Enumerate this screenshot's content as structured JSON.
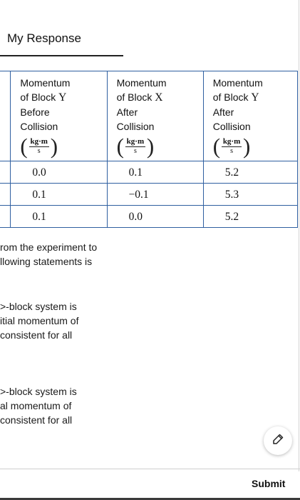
{
  "header": {
    "title": "My Response"
  },
  "table": {
    "columns": [
      {
        "lines": [
          "Momentum",
          "of Block ",
          "Before",
          "Collision"
        ],
        "block": "Y",
        "unit_num": "kg·m",
        "unit_den": "s"
      },
      {
        "lines": [
          "Momentum",
          "of Block ",
          "After",
          "Collision"
        ],
        "block": "X",
        "unit_num": "kg·m",
        "unit_den": "s"
      },
      {
        "lines": [
          "Momentum",
          "of Block ",
          "After",
          "Collision"
        ],
        "block": "Y",
        "unit_num": "kg·m",
        "unit_den": "s"
      }
    ],
    "rows": [
      [
        "0.0",
        "0.1",
        "5.2"
      ],
      [
        "0.1",
        "−0.1",
        "5.3"
      ],
      [
        "0.1",
        "0.0",
        "5.2"
      ]
    ]
  },
  "body_text": {
    "para1": [
      "rom the experiment to",
      "llowing statements is"
    ],
    "para2": [
      ">-block system is",
      "itial momentum of",
      "consistent for all"
    ],
    "para3": [
      ">-block system is",
      "al momentum of",
      "consistent for all"
    ]
  },
  "icons": {
    "edit": "pencil-icon"
  },
  "footer": {
    "submit_label": "Submit"
  }
}
